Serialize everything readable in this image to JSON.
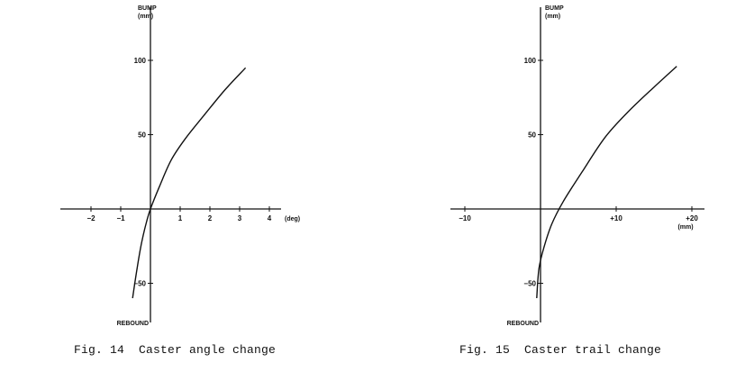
{
  "chart_data": [
    {
      "type": "line",
      "figure_caption": "Fig. 14  Caster angle change",
      "y_title": [
        "BUMP",
        "(mm)"
      ],
      "y_bottom_label": "REBOUND",
      "x_unit_label": "(deg)",
      "x_ticks": [
        {
          "value": -2,
          "label": "−2"
        },
        {
          "value": -1,
          "label": "−1"
        },
        {
          "value": 1,
          "label": "1"
        },
        {
          "value": 2,
          "label": "2"
        },
        {
          "value": 3,
          "label": "3"
        },
        {
          "value": 4,
          "label": "4"
        }
      ],
      "y_ticks": [
        {
          "value": 100,
          "label": "100"
        },
        {
          "value": 50,
          "label": "50"
        },
        {
          "value": -50,
          "label": "−50"
        }
      ],
      "series": [
        {
          "x": [
            -0.6,
            -0.45,
            -0.3,
            -0.15,
            0,
            0.3,
            0.7,
            1.2,
            1.8,
            2.5,
            3.2
          ],
          "y": [
            -60,
            -40,
            -23,
            -10,
            0,
            15,
            33,
            48,
            63,
            80,
            95
          ]
        }
      ]
    },
    {
      "type": "line",
      "figure_caption": "Fig. 15  Caster trail change",
      "y_title": [
        "BUMP",
        "(mm)"
      ],
      "y_bottom_label": "REBOUND",
      "x_unit_label": "(mm)",
      "x_ticks": [
        {
          "value": -10,
          "label": "−10"
        },
        {
          "value": 10,
          "label": "+10"
        },
        {
          "value": 20,
          "label": "+20"
        }
      ],
      "y_ticks": [
        {
          "value": 100,
          "label": "100"
        },
        {
          "value": 50,
          "label": "50"
        },
        {
          "value": -50,
          "label": "−50"
        }
      ],
      "series": [
        {
          "x": [
            -0.5,
            -0.2,
            0.5,
            1.5,
            3,
            5.5,
            8.5,
            11.5,
            15,
            18
          ],
          "y": [
            -60,
            -40,
            -25,
            -10,
            5,
            25,
            48,
            65,
            82,
            96
          ]
        }
      ]
    }
  ]
}
